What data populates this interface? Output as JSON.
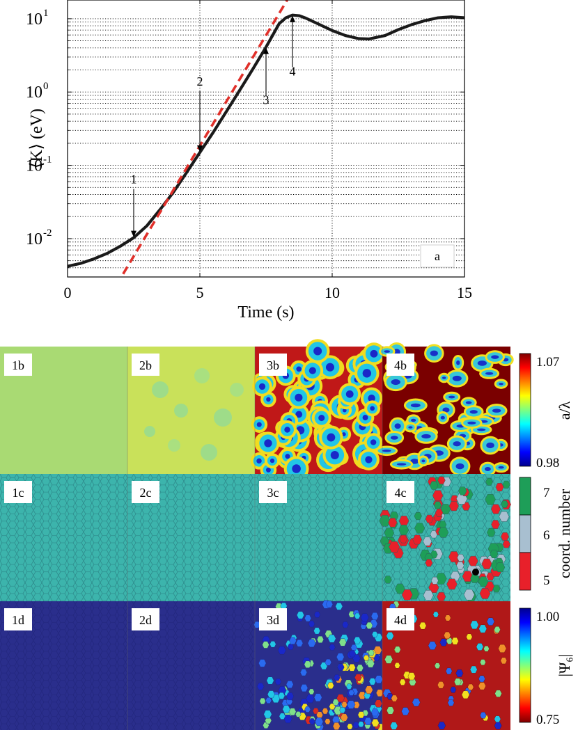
{
  "chart_data": [
    {
      "type": "line",
      "panel_label": "a",
      "xlabel": "Time (s)",
      "ylabel": "⟨K⟩ (eV)",
      "xlim": [
        0,
        15
      ],
      "ylim": [
        0.003,
        18
      ],
      "yscale": "log",
      "grid": true,
      "x_ticks": [
        0,
        5,
        10,
        15
      ],
      "x_tick_labels": [
        "0",
        "5",
        "10",
        "15"
      ],
      "y_ticks": [
        0.01,
        0.1,
        1,
        10
      ],
      "y_tick_labels": [
        {
          "base": "10",
          "exp": "-2"
        },
        {
          "base": "10",
          "exp": "-1"
        },
        {
          "base": "10",
          "exp": "0"
        },
        {
          "base": "10",
          "exp": "1"
        }
      ],
      "series": [
        {
          "color": "#1a1a1a",
          "style": "solid",
          "x": [
            0,
            0.5,
            1.0,
            1.5,
            2.0,
            2.5,
            3.0,
            3.5,
            4.0,
            4.5,
            5.0,
            5.5,
            6.0,
            6.5,
            7.0,
            7.5,
            8.0,
            8.25,
            8.5,
            8.75,
            9.0,
            9.5,
            10.0,
            10.5,
            11.0,
            11.4,
            12.0,
            12.5,
            13.0,
            13.5,
            14.0,
            14.5,
            15.0
          ],
          "y": [
            0.0042,
            0.0046,
            0.0053,
            0.0063,
            0.0079,
            0.0103,
            0.015,
            0.025,
            0.043,
            0.08,
            0.15,
            0.28,
            0.54,
            1.05,
            2.05,
            4.1,
            8.6,
            10.3,
            11.2,
            11.0,
            10.2,
            8.4,
            6.9,
            5.9,
            5.35,
            5.3,
            5.9,
            7.1,
            8.3,
            9.4,
            10.3,
            10.6,
            10.3
          ]
        },
        {
          "color": "#e0302a",
          "style": "dashed",
          "x": [
            2.1,
            8.3
          ],
          "y": [
            0.0033,
            18
          ]
        }
      ],
      "annotations": [
        {
          "text": "1",
          "x": 2.5,
          "y": 0.0103
        },
        {
          "text": "2",
          "x": 5.0,
          "y": 0.15
        },
        {
          "text": "3",
          "x": 7.5,
          "y": 4.1
        },
        {
          "text": "4",
          "x": 8.5,
          "y": 11.2
        }
      ]
    },
    {
      "type": "heatmap",
      "rows": [
        {
          "panels": [
            "1b",
            "2b",
            "3b",
            "4b"
          ],
          "colorbar": {
            "label": "a/λ",
            "ticks": [
              "1.07",
              "0.98"
            ],
            "min": 0.98,
            "max": 1.07
          }
        },
        {
          "panels": [
            "1c",
            "2c",
            "3c",
            "4c"
          ],
          "colorbar": {
            "label": "coord. number",
            "ticks": [
              "7",
              "6",
              "5"
            ],
            "colors": [
              "#1e9e58",
              "#a8bfd0",
              "#e8202a"
            ]
          }
        },
        {
          "panels": [
            "1d",
            "2d",
            "3d",
            "4d"
          ],
          "colorbar": {
            "label": "|Ψ₆|",
            "ticks": [
              "1.00",
              "0.75"
            ],
            "min": 0.75,
            "max": 1.0
          }
        }
      ]
    }
  ]
}
